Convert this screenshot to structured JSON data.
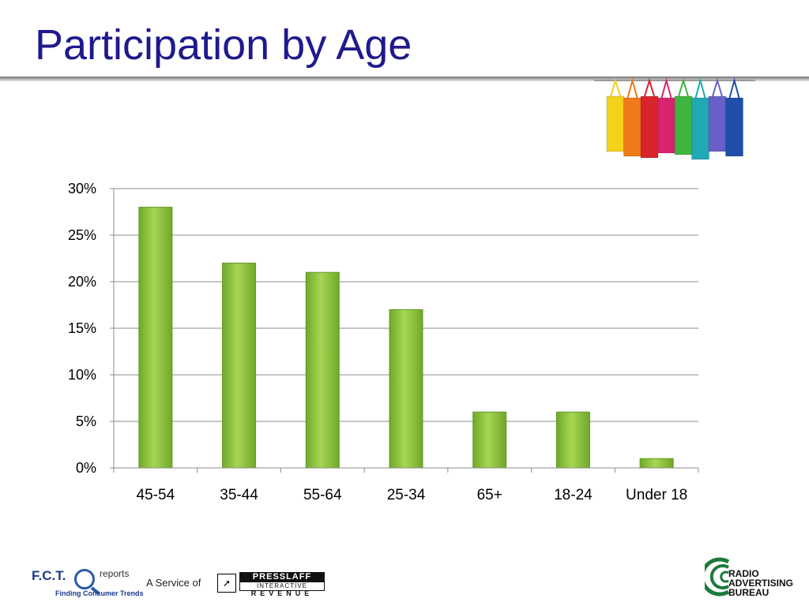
{
  "slide": {
    "title": "Participation by Age"
  },
  "decor": {
    "bag_colors": [
      "#f2d21a",
      "#f07a18",
      "#d9242c",
      "#d8246f",
      "#3fb43f",
      "#21a8b4",
      "#6a5fc8",
      "#1f4fa8"
    ]
  },
  "colors": {
    "title": "#1f1a8c",
    "bar": "#8dbf3a",
    "bar_dark": "#5f9a23"
  },
  "chart_data": {
    "type": "bar",
    "categories": [
      "45-54",
      "35-44",
      "55-64",
      "25-34",
      "65+",
      "18-24",
      "Under 18"
    ],
    "values": [
      28,
      22,
      21,
      17,
      6,
      6,
      1
    ],
    "value_unit": "%",
    "ylim": [
      0,
      30
    ],
    "yticks": [
      0,
      5,
      10,
      15,
      20,
      25,
      30
    ],
    "ytick_labels": [
      "0%",
      "5%",
      "10%",
      "15%",
      "20%",
      "25%",
      "30%"
    ],
    "grid": true,
    "legend": "none",
    "title": "",
    "xlabel": "",
    "ylabel": ""
  },
  "footer": {
    "fct_name": "F.C.T.",
    "fct_reports": "reports",
    "fct_tagline": "Finding Consumer Trends",
    "service_of": "A Service of",
    "presslaff_main": "PRESSLAFF",
    "presslaff_sub": "INTERACTIVE",
    "presslaff_rev": "REVENUE",
    "rab_lines": [
      "RADIO",
      "ADVERTISING",
      "BUREAU"
    ]
  }
}
